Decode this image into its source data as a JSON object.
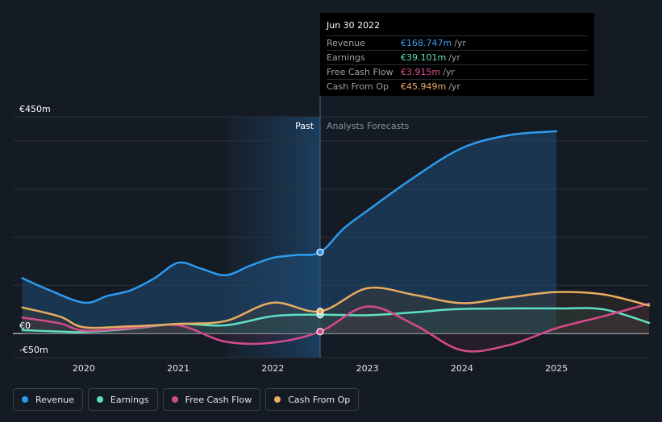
{
  "chart_data": {
    "type": "line",
    "y_tick_labels": [
      "€450m",
      "€0",
      "-€50m"
    ],
    "y_ticks": [
      450,
      0,
      -50
    ],
    "ylim": [
      -50,
      450
    ],
    "x_tick_labels": [
      "2020",
      "2021",
      "2022",
      "2023",
      "2024",
      "2025"
    ],
    "x_ticks": [
      2020,
      2021,
      2022,
      2023,
      2024,
      2025
    ],
    "xlim": [
      2019.25,
      2025.98
    ],
    "divider_x": 2022.5,
    "past_label": "Past",
    "forecast_label": "Analysts Forecasts",
    "grid": true,
    "series": [
      {
        "name": "Revenue",
        "color": "#2d9bf0",
        "x": [
          2019.35,
          2019.6,
          2020.0,
          2020.25,
          2020.5,
          2020.75,
          2021.0,
          2021.25,
          2021.5,
          2021.75,
          2022.0,
          2022.25,
          2022.5,
          2022.75,
          2023.0,
          2023.5,
          2024.0,
          2024.5,
          2025.0
        ],
        "y": [
          115,
          93,
          64,
          78,
          90,
          115,
          147,
          134,
          121,
          140,
          157,
          163,
          168.747,
          218,
          255,
          325,
          385,
          412,
          420
        ]
      },
      {
        "name": "Earnings",
        "color": "#5fe0c4",
        "x": [
          2019.35,
          2019.75,
          2020.0,
          2020.5,
          2021.0,
          2021.5,
          2022.0,
          2022.5,
          2023.0,
          2023.5,
          2024.0,
          2025.0,
          2025.5,
          2025.98
        ],
        "y": [
          7,
          4,
          3,
          10,
          20,
          17,
          36,
          39.101,
          38,
          44,
          51,
          52,
          50,
          22
        ]
      },
      {
        "name": "Free Cash Flow",
        "color": "#d54b8c",
        "x": [
          2019.35,
          2019.75,
          2020.0,
          2020.5,
          2021.0,
          2021.5,
          2022.0,
          2022.5,
          2023.0,
          2023.5,
          2024.0,
          2024.5,
          2025.0,
          2025.5,
          2025.98
        ],
        "y": [
          33,
          21,
          6,
          11,
          17,
          -17,
          -19,
          3.915,
          56,
          18,
          -35,
          -24,
          11,
          36,
          62
        ]
      },
      {
        "name": "Cash From Op",
        "color": "#e8ad60",
        "x": [
          2019.35,
          2019.75,
          2020.0,
          2020.5,
          2021.0,
          2021.5,
          2022.0,
          2022.5,
          2023.0,
          2023.5,
          2024.0,
          2024.5,
          2025.0,
          2025.5,
          2025.98
        ],
        "y": [
          54,
          35,
          13,
          15,
          20,
          26,
          64,
          45.949,
          94,
          80,
          63,
          75,
          86,
          81,
          58
        ]
      }
    ],
    "highlight": {
      "x": 2022.5
    }
  },
  "tooltip": {
    "date": "Jun 30 2022",
    "unit": "/yr",
    "rows": [
      {
        "name": "Revenue",
        "value": "€168.747m",
        "color": "#3d9df2"
      },
      {
        "name": "Earnings",
        "value": "€39.101m",
        "color": "#5fe0c4"
      },
      {
        "name": "Free Cash Flow",
        "value": "€3.915m",
        "color": "#e0508f"
      },
      {
        "name": "Cash From Op",
        "value": "€45.949m",
        "color": "#eab069"
      }
    ]
  },
  "legend": [
    {
      "label": "Revenue",
      "color": "#2d9bf0"
    },
    {
      "label": "Earnings",
      "color": "#5fe0c4"
    },
    {
      "label": "Free Cash Flow",
      "color": "#d54b8c"
    },
    {
      "label": "Cash From Op",
      "color": "#e8ad60"
    }
  ]
}
